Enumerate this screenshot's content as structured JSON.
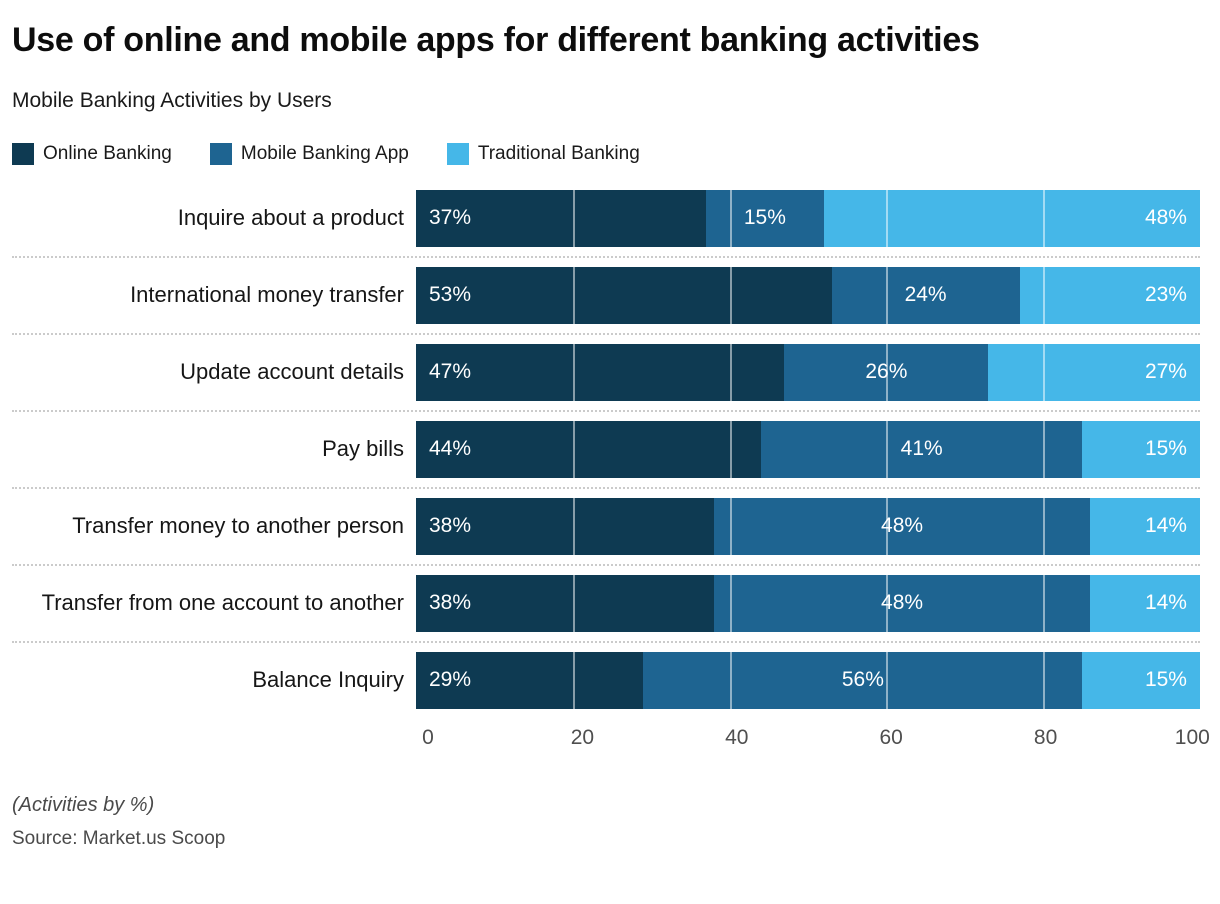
{
  "footer": {
    "note": "(Activities by %)",
    "source": "Source: Market.us Scoop"
  },
  "chart_data": {
    "type": "bar",
    "orientation": "horizontal-stacked",
    "title": "Use of online and mobile apps for different banking activities",
    "subtitle": "Mobile Banking Activities by Users",
    "xlabel": "",
    "ylabel": "",
    "xlim": [
      0,
      100
    ],
    "xticks": [
      0,
      20,
      40,
      60,
      80,
      100
    ],
    "gridlines": [
      20,
      40,
      60,
      80
    ],
    "grid": "vertical-white-lines-over-bars",
    "grid_color": "rgba(255,255,255,0.5)",
    "legend_position": "top",
    "value_suffix": "%",
    "categories": [
      "Inquire about a product",
      "International money transfer",
      "Update account details",
      "Pay bills",
      "Transfer money to another person",
      "Transfer from one account to another",
      "Balance Inquiry"
    ],
    "series": [
      {
        "name": "Online Banking",
        "color": "#0e3a52",
        "values": [
          37,
          53,
          47,
          44,
          38,
          38,
          29
        ]
      },
      {
        "name": "Mobile Banking App",
        "color": "#1e6491",
        "values": [
          15,
          24,
          26,
          41,
          48,
          48,
          56
        ]
      },
      {
        "name": "Traditional Banking",
        "color": "#45b7e8",
        "values": [
          48,
          23,
          27,
          15,
          14,
          14,
          15
        ]
      }
    ]
  }
}
